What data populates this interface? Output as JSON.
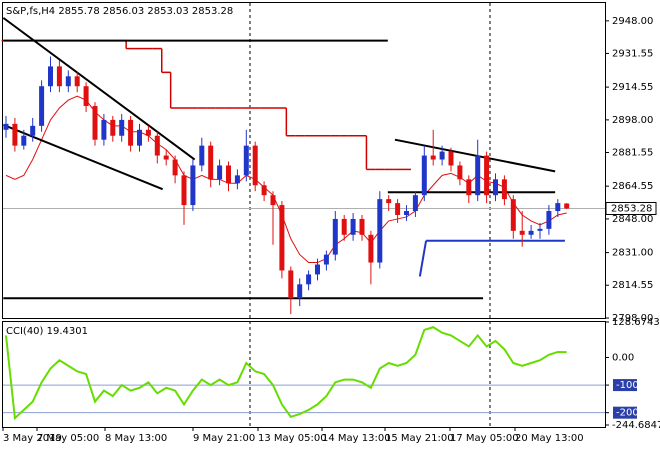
{
  "chart_data": {
    "type": "candlestick",
    "title": "S&P,fs,H4 2855.78 2856.03 2853.03 2853.28",
    "up_color": "#1f36c8",
    "down_color": "#e01010",
    "open": [
      2893,
      2896,
      2885,
      2890,
      2895,
      2915,
      2925,
      2915,
      2920,
      2915,
      2905,
      2888,
      2898,
      2890,
      2898,
      2885,
      2893,
      2890,
      2880,
      2878,
      2870,
      2855,
      2875,
      2885,
      2868,
      2875,
      2866,
      2870,
      2885,
      2865,
      2860,
      2855,
      2822,
      2808,
      2815,
      2820,
      2825,
      2830,
      2848,
      2840,
      2848,
      2840,
      2826,
      2858,
      2856,
      2850,
      2852,
      2860,
      2880,
      2878,
      2882,
      2875,
      2868,
      2860,
      2880,
      2860,
      2868,
      2858,
      2842,
      2840,
      2842,
      2843,
      2852,
      2855.78
    ],
    "high": [
      2900,
      2899,
      2893,
      2899,
      2918,
      2930,
      2928,
      2923,
      2922,
      2917,
      2907,
      2901,
      2900,
      2901,
      2900,
      2896,
      2895,
      2892,
      2883,
      2880,
      2872,
      2878,
      2889,
      2887,
      2878,
      2877,
      2873,
      2893,
      2887,
      2867,
      2862,
      2857,
      2824,
      2818,
      2822,
      2828,
      2832,
      2852,
      2850,
      2851,
      2850,
      2842,
      2862,
      2860,
      2858,
      2855,
      2862,
      2885,
      2893,
      2885,
      2884,
      2877,
      2870,
      2888,
      2882,
      2871,
      2870,
      2860,
      2852,
      2845,
      2846,
      2855,
      2858,
      2856.03
    ],
    "low": [
      2889,
      2882,
      2883,
      2887,
      2892,
      2912,
      2912,
      2912,
      2912,
      2902,
      2885,
      2885,
      2887,
      2887,
      2882,
      2882,
      2887,
      2876,
      2875,
      2866,
      2845,
      2852,
      2872,
      2864,
      2865,
      2862,
      2863,
      2867,
      2862,
      2857,
      2835,
      2818,
      2800,
      2804,
      2812,
      2817,
      2822,
      2827,
      2837,
      2837,
      2837,
      2815,
      2823,
      2852,
      2846,
      2847,
      2849,
      2857,
      2875,
      2875,
      2872,
      2865,
      2856,
      2857,
      2856,
      2857,
      2855,
      2838,
      2834,
      2838,
      2838,
      2840,
      2849,
      2853.03
    ],
    "close": [
      2896,
      2885,
      2890,
      2895,
      2915,
      2925,
      2915,
      2920,
      2915,
      2905,
      2888,
      2898,
      2890,
      2898,
      2885,
      2893,
      2890,
      2880,
      2878,
      2870,
      2855,
      2875,
      2885,
      2868,
      2875,
      2866,
      2870,
      2885,
      2865,
      2860,
      2855,
      2822,
      2808,
      2815,
      2820,
      2825,
      2830,
      2848,
      2840,
      2848,
      2840,
      2826,
      2858,
      2856,
      2850,
      2852,
      2860,
      2880,
      2878,
      2882,
      2875,
      2868,
      2860,
      2880,
      2860,
      2868,
      2858,
      2842,
      2840,
      2842,
      2843,
      2852,
      2856,
      2853.28
    ],
    "ma": {
      "color": "#e01010",
      "values": [
        2870,
        2868,
        2870,
        2878,
        2888,
        2898,
        2904,
        2908,
        2910,
        2908,
        2902,
        2898,
        2895,
        2895,
        2892,
        2892,
        2890,
        2886,
        2883,
        2878,
        2870,
        2868,
        2870,
        2868,
        2868,
        2866,
        2866,
        2870,
        2868,
        2864,
        2860,
        2850,
        2838,
        2830,
        2826,
        2826,
        2828,
        2835,
        2838,
        2842,
        2841,
        2836,
        2842,
        2847,
        2848,
        2849,
        2852,
        2860,
        2865,
        2870,
        2871,
        2869,
        2866,
        2870,
        2867,
        2866,
        2864,
        2856,
        2850,
        2847,
        2845,
        2847,
        2850,
        2851
      ]
    },
    "step_line": {
      "color": "#d00000",
      "values": [
        2938,
        2938,
        2938,
        2938,
        2938,
        2938,
        2938,
        2938,
        2938,
        2938,
        2938,
        2938,
        2938,
        2938,
        2934,
        2934,
        2934,
        2934,
        2922,
        2904,
        2904,
        2904,
        2904,
        2904,
        2904,
        2904,
        2904,
        2904,
        2904,
        2904,
        2904,
        2904,
        2890,
        2890,
        2890,
        2890,
        2890,
        2890,
        2890,
        2890,
        2890,
        2873,
        2873,
        2873,
        2873,
        2873,
        null,
        null,
        null,
        null,
        null,
        null,
        null,
        null,
        null,
        null,
        null,
        null,
        null,
        null,
        null,
        null,
        null,
        null
      ]
    },
    "trend_lines": [
      {
        "color": "#000000",
        "from": [
          -0.3,
          2949.5
        ],
        "to": [
          21.2,
          2878
        ]
      },
      {
        "color": "#000000",
        "from": [
          -0.3,
          2895.5
        ],
        "to": [
          17.6,
          2863
        ]
      },
      {
        "color": "#000000",
        "from": [
          -0.3,
          2938
        ],
        "to": [
          42.9,
          2938
        ]
      },
      {
        "color": "#000000",
        "from": [
          -0.3,
          2808
        ],
        "to": [
          53.6,
          2808
        ]
      },
      {
        "color": "#000000",
        "from": [
          43.7,
          2888
        ],
        "to": [
          61.7,
          2872
        ]
      },
      {
        "color": "#000000",
        "from": [
          42.9,
          2861.5
        ],
        "to": [
          61.7,
          2861.5
        ]
      },
      {
        "color": "#1f36c8",
        "from": [
          46.5,
          2819
        ],
        "to": [
          47.2,
          2837
        ]
      },
      {
        "color": "#1f36c8",
        "from": [
          47.2,
          2837
        ],
        "to": [
          62.8,
          2837
        ]
      }
    ],
    "ylim": [
      2798,
      2956.5
    ],
    "yticks": [
      {
        "value": 2948,
        "label": "2948.00"
      },
      2931.55,
      2914.55,
      {
        "value": 2898,
        "label": "2898.00"
      },
      2881.55,
      2864.55,
      {
        "value": 2848,
        "label": "2848.00"
      },
      {
        "value": 2831,
        "label": "2831.00"
      },
      2814.55,
      {
        "value": 2798,
        "label": "2798.00"
      }
    ],
    "x_labels": [
      "3 May 2019",
      "7 May 05:00",
      "8 May 13:00",
      "9 May 21:00",
      "13 May 05:00",
      "14 May 13:00",
      "15 May 21:00",
      "17 May 05:00",
      "20 May 13:00"
    ],
    "cci": {
      "title": "CCI(40) 19.4301",
      "color": "#66dd00",
      "values": [
        80,
        -220,
        -190,
        -160,
        -90,
        -40,
        -10,
        -30,
        -50,
        -60,
        -160,
        -120,
        -140,
        -100,
        -120,
        -110,
        -90,
        -130,
        -110,
        -120,
        -170,
        -120,
        -80,
        -100,
        -80,
        -100,
        -90,
        -20,
        -50,
        -60,
        -100,
        -170,
        -215,
        -205,
        -190,
        -170,
        -140,
        -90,
        -80,
        -80,
        -90,
        -110,
        -40,
        -20,
        -30,
        -20,
        10,
        100,
        110,
        90,
        80,
        60,
        40,
        80,
        40,
        60,
        30,
        -20,
        -30,
        -20,
        -10,
        10,
        20,
        19.4301
      ],
      "ylim": [
        -244.6847,
        128.6743
      ],
      "yticks": [
        128.6743,
        {
          "value": 0,
          "label": "0.00"
        },
        -100,
        -200,
        -244.6847
      ]
    }
  }
}
